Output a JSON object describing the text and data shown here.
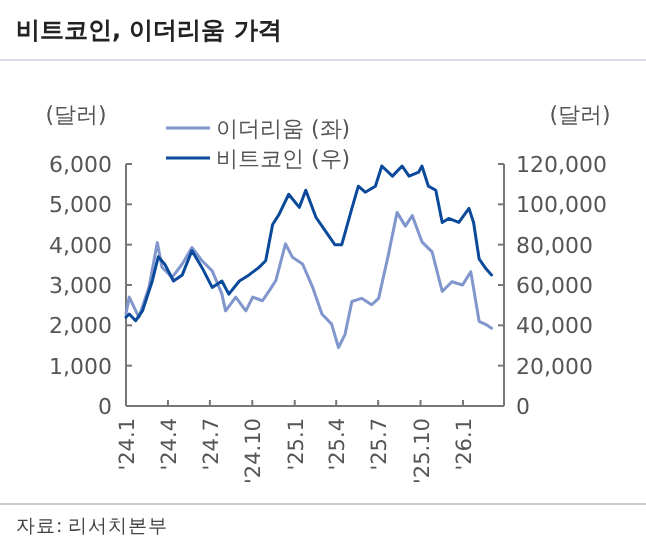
{
  "chart_data": {
    "type": "line",
    "title": "비트코인, 이더리움 가격",
    "ylabel": "(달러)",
    "y2label": "(달러)",
    "annotations": [
      "자료: 리서치본부"
    ],
    "legend": "top left",
    "grid": false,
    "marker": "none",
    "line_style": "solid",
    "xlim": [
      "2024-01-01",
      "2026-03-31"
    ],
    "xticks": [
      {
        "value": "2024-01-01",
        "label": "'24.1"
      },
      {
        "value": "2024-04-01",
        "label": "'24.4"
      },
      {
        "value": "2024-07-01",
        "label": "'24.7"
      },
      {
        "value": "2024-10-01",
        "label": "'24.10"
      },
      {
        "value": "2025-01-01",
        "label": "'25.1"
      },
      {
        "value": "2025-04-01",
        "label": "'25.4"
      },
      {
        "value": "2025-07-01",
        "label": "'25.7"
      },
      {
        "value": "2025-10-01",
        "label": "'25.10"
      },
      {
        "value": "2026-01-01",
        "label": "'26.1"
      }
    ],
    "ylim": [
      0,
      6000
    ],
    "yticks": [
      {
        "value": 0,
        "label": "0"
      },
      {
        "value": 1000,
        "label": "1,000"
      },
      {
        "value": 2000,
        "label": "2,000"
      },
      {
        "value": 3000,
        "label": "3,000"
      },
      {
        "value": 4000,
        "label": "4,000"
      },
      {
        "value": 5000,
        "label": "5,000"
      },
      {
        "value": 6000,
        "label": "6,000"
      }
    ],
    "y2lim": [
      0,
      120000
    ],
    "y2ticks": [
      {
        "value": 0,
        "label": "0"
      },
      {
        "value": 20000,
        "label": "20,000"
      },
      {
        "value": 40000,
        "label": "40,000"
      },
      {
        "value": 60000,
        "label": "60,000"
      },
      {
        "value": 80000,
        "label": "80,000"
      },
      {
        "value": 100000,
        "label": "100,000"
      },
      {
        "value": 120000,
        "label": "120,000"
      }
    ],
    "series": [
      {
        "name": "이더리움 (좌)",
        "color": "#8096cc",
        "axis": "y",
        "x": [
          "2024-01-01",
          "2024-01-08",
          "2024-01-29",
          "2024-02-20",
          "2024-03-09",
          "2024-03-19",
          "2024-04-10",
          "2024-05-02",
          "2024-05-23",
          "2024-06-14",
          "2024-07-06",
          "2024-07-27",
          "2024-08-04",
          "2024-08-26",
          "2024-09-17",
          "2024-10-02",
          "2024-10-23",
          "2024-11-07",
          "2024-11-21",
          "2024-12-12",
          "2024-12-27",
          "2025-01-18",
          "2025-02-09",
          "2025-03-01",
          "2025-03-22",
          "2025-04-06",
          "2025-04-20",
          "2025-05-05",
          "2025-05-26",
          "2025-06-17",
          "2025-07-02",
          "2025-07-23",
          "2025-08-11",
          "2025-08-29",
          "2025-09-13",
          "2025-10-04",
          "2025-10-26",
          "2025-11-17",
          "2025-12-08",
          "2025-12-31",
          "2026-01-18",
          "2026-02-05",
          "2026-02-20",
          "2026-03-04"
        ],
        "values": [
          2290,
          2700,
          2200,
          2950,
          4050,
          3440,
          3190,
          3520,
          3930,
          3600,
          3350,
          2780,
          2360,
          2700,
          2360,
          2700,
          2610,
          2860,
          3110,
          4020,
          3690,
          3520,
          2940,
          2280,
          2030,
          1450,
          1770,
          2590,
          2670,
          2510,
          2670,
          3740,
          4800,
          4460,
          4720,
          4070,
          3820,
          2840,
          3080,
          3000,
          3330,
          2100,
          2020,
          1930
        ]
      },
      {
        "name": "비트코인 (우)",
        "color": "#0b4a9b",
        "axis": "y2",
        "x": [
          "2024-01-01",
          "2024-01-08",
          "2024-01-22",
          "2024-02-06",
          "2024-02-27",
          "2024-03-11",
          "2024-03-26",
          "2024-04-13",
          "2024-05-02",
          "2024-05-23",
          "2024-06-14",
          "2024-07-06",
          "2024-07-27",
          "2024-08-11",
          "2024-09-03",
          "2024-09-24",
          "2024-10-15",
          "2024-10-30",
          "2024-11-14",
          "2024-11-28",
          "2024-12-19",
          "2025-01-11",
          "2025-01-25",
          "2025-02-16",
          "2025-03-08",
          "2025-03-29",
          "2025-04-13",
          "2025-05-05",
          "2025-05-19",
          "2025-06-03",
          "2025-06-25",
          "2025-07-09",
          "2025-08-01",
          "2025-08-22",
          "2025-09-06",
          "2025-09-27",
          "2025-10-04",
          "2025-10-18",
          "2025-11-03",
          "2025-11-17",
          "2025-12-01",
          "2025-12-23",
          "2026-01-14",
          "2026-01-24",
          "2026-02-05",
          "2026-02-20",
          "2026-03-04"
        ],
        "values": [
          44000,
          45600,
          42300,
          47300,
          62000,
          74000,
          70000,
          62000,
          65000,
          77000,
          68600,
          58800,
          62000,
          55500,
          62000,
          65000,
          68600,
          72000,
          90000,
          95000,
          105000,
          98500,
          107000,
          93600,
          87000,
          80000,
          80000,
          98000,
          109000,
          106000,
          109000,
          119000,
          114000,
          119000,
          114000,
          116000,
          119000,
          109000,
          107000,
          91000,
          93000,
          91000,
          98000,
          91000,
          73000,
          68000,
          65000
        ]
      }
    ]
  }
}
